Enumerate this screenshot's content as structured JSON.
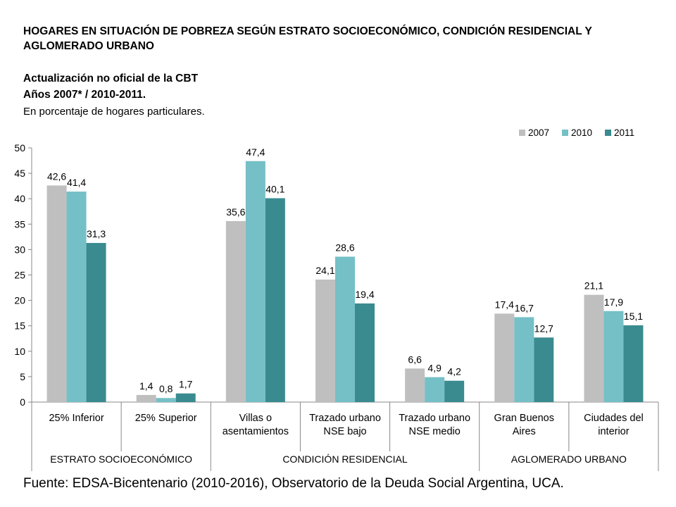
{
  "header": {
    "title": "HOGARES EN SITUACIÓN DE POBREZA SEGÚN ESTRATO SOCIOECONÓMICO, CONDICIÓN RESIDENCIAL Y AGLOMERADO URBANO",
    "subtitle_line1": "Actualización no oficial de la CBT",
    "subtitle_line2": "Años 2007* / 2010-2011.",
    "note": "En porcentaje de hogares particulares."
  },
  "footer": {
    "source": "Fuente: EDSA-Bicentenario (2010-2016), Observatorio de la Deuda Social Argentina, UCA."
  },
  "colors": {
    "s2007": "#bfbfbf",
    "s2010": "#74c0c6",
    "s2011": "#3a8b90",
    "axis": "#888888"
  },
  "chart_data": {
    "type": "bar",
    "title": "HOGARES EN SITUACIÓN DE POBREZA SEGÚN ESTRATO SOCIOECONÓMICO, CONDICIÓN RESIDENCIAL Y AGLOMERADO URBANO",
    "categories": [
      [
        "25% Inferior"
      ],
      [
        "25% Superior"
      ],
      [
        "Villas o",
        "asentamientos"
      ],
      [
        "Trazado urbano",
        "NSE bajo"
      ],
      [
        "Trazado urbano",
        "NSE medio"
      ],
      [
        "Gran Buenos",
        "Aires"
      ],
      [
        "Ciudades del",
        "interior"
      ]
    ],
    "groups": [
      {
        "label": "ESTRATO SOCIOECONÓMICO",
        "start": 0,
        "end": 1
      },
      {
        "label": "CONDICIÓN RESIDENCIAL",
        "start": 2,
        "end": 4
      },
      {
        "label": "AGLOMERADO URBANO",
        "start": 5,
        "end": 6
      }
    ],
    "series": [
      {
        "name": "2007",
        "values": [
          42.6,
          1.4,
          35.6,
          24.1,
          6.6,
          17.4,
          21.1
        ],
        "labels": [
          "42,6",
          "1,4",
          "35,6",
          "24,1",
          "6,6",
          "17,4",
          "21,1"
        ]
      },
      {
        "name": "2010",
        "values": [
          41.4,
          0.8,
          47.4,
          28.6,
          4.9,
          16.7,
          17.9
        ],
        "labels": [
          "41,4",
          "0,8",
          "47,4",
          "28,6",
          "4,9",
          "16,7",
          "17,9"
        ]
      },
      {
        "name": "2011",
        "values": [
          31.3,
          1.7,
          40.1,
          19.4,
          4.2,
          12.7,
          15.1
        ],
        "labels": [
          "31,3",
          "1,7",
          "40,1",
          "19,4",
          "4,2",
          "12,7",
          "15,1"
        ]
      }
    ],
    "ylim": [
      0,
      50
    ],
    "yticks": [
      0,
      5,
      10,
      15,
      20,
      25,
      30,
      35,
      40,
      45,
      50
    ],
    "xlabel": "",
    "ylabel": "",
    "legend_position": "top-right",
    "grid": false
  }
}
